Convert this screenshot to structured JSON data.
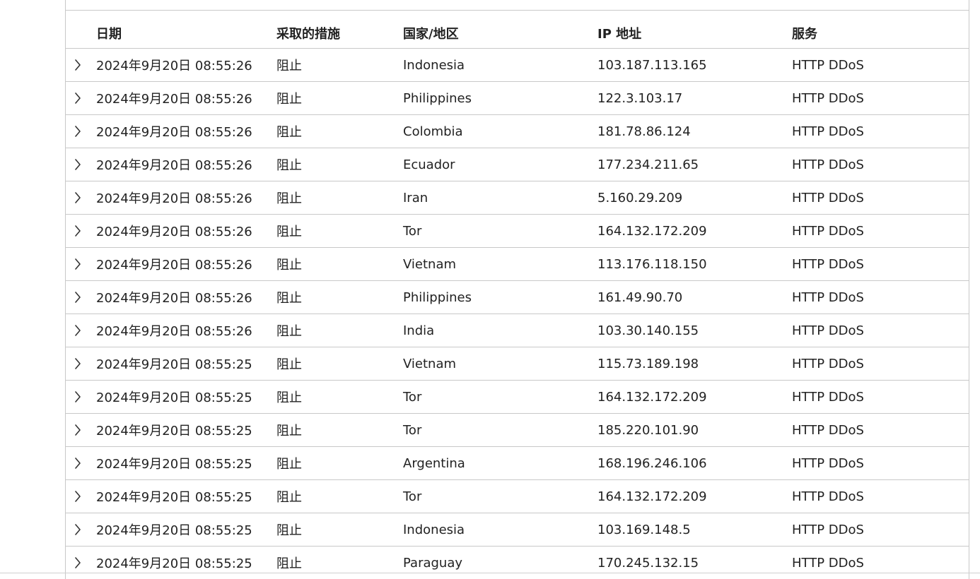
{
  "table": {
    "headers": {
      "date": "日期",
      "action": "采取的措施",
      "country": "国家/地区",
      "ip": "IP 地址",
      "service": "服务"
    },
    "expand_icon": "chevron-right-icon",
    "rows": [
      {
        "date": "2024年9月20日 08:55:26",
        "action": "阻止",
        "country": "Indonesia",
        "ip": "103.187.113.165",
        "service": "HTTP DDoS"
      },
      {
        "date": "2024年9月20日 08:55:26",
        "action": "阻止",
        "country": "Philippines",
        "ip": "122.3.103.17",
        "service": "HTTP DDoS"
      },
      {
        "date": "2024年9月20日 08:55:26",
        "action": "阻止",
        "country": "Colombia",
        "ip": "181.78.86.124",
        "service": "HTTP DDoS"
      },
      {
        "date": "2024年9月20日 08:55:26",
        "action": "阻止",
        "country": "Ecuador",
        "ip": "177.234.211.65",
        "service": "HTTP DDoS"
      },
      {
        "date": "2024年9月20日 08:55:26",
        "action": "阻止",
        "country": "Iran",
        "ip": "5.160.29.209",
        "service": "HTTP DDoS"
      },
      {
        "date": "2024年9月20日 08:55:26",
        "action": "阻止",
        "country": "Tor",
        "ip": "164.132.172.209",
        "service": "HTTP DDoS"
      },
      {
        "date": "2024年9月20日 08:55:26",
        "action": "阻止",
        "country": "Vietnam",
        "ip": "113.176.118.150",
        "service": "HTTP DDoS"
      },
      {
        "date": "2024年9月20日 08:55:26",
        "action": "阻止",
        "country": "Philippines",
        "ip": "161.49.90.70",
        "service": "HTTP DDoS"
      },
      {
        "date": "2024年9月20日 08:55:26",
        "action": "阻止",
        "country": "India",
        "ip": "103.30.140.155",
        "service": "HTTP DDoS"
      },
      {
        "date": "2024年9月20日 08:55:25",
        "action": "阻止",
        "country": "Vietnam",
        "ip": "115.73.189.198",
        "service": "HTTP DDoS"
      },
      {
        "date": "2024年9月20日 08:55:25",
        "action": "阻止",
        "country": "Tor",
        "ip": "164.132.172.209",
        "service": "HTTP DDoS"
      },
      {
        "date": "2024年9月20日 08:55:25",
        "action": "阻止",
        "country": "Tor",
        "ip": "185.220.101.90",
        "service": "HTTP DDoS"
      },
      {
        "date": "2024年9月20日 08:55:25",
        "action": "阻止",
        "country": "Argentina",
        "ip": "168.196.246.106",
        "service": "HTTP DDoS"
      },
      {
        "date": "2024年9月20日 08:55:25",
        "action": "阻止",
        "country": "Tor",
        "ip": "164.132.172.209",
        "service": "HTTP DDoS"
      },
      {
        "date": "2024年9月20日 08:55:25",
        "action": "阻止",
        "country": "Indonesia",
        "ip": "103.169.148.5",
        "service": "HTTP DDoS"
      },
      {
        "date": "2024年9月20日 08:55:25",
        "action": "阻止",
        "country": "Paraguay",
        "ip": "170.245.132.15",
        "service": "HTTP DDoS"
      }
    ]
  }
}
